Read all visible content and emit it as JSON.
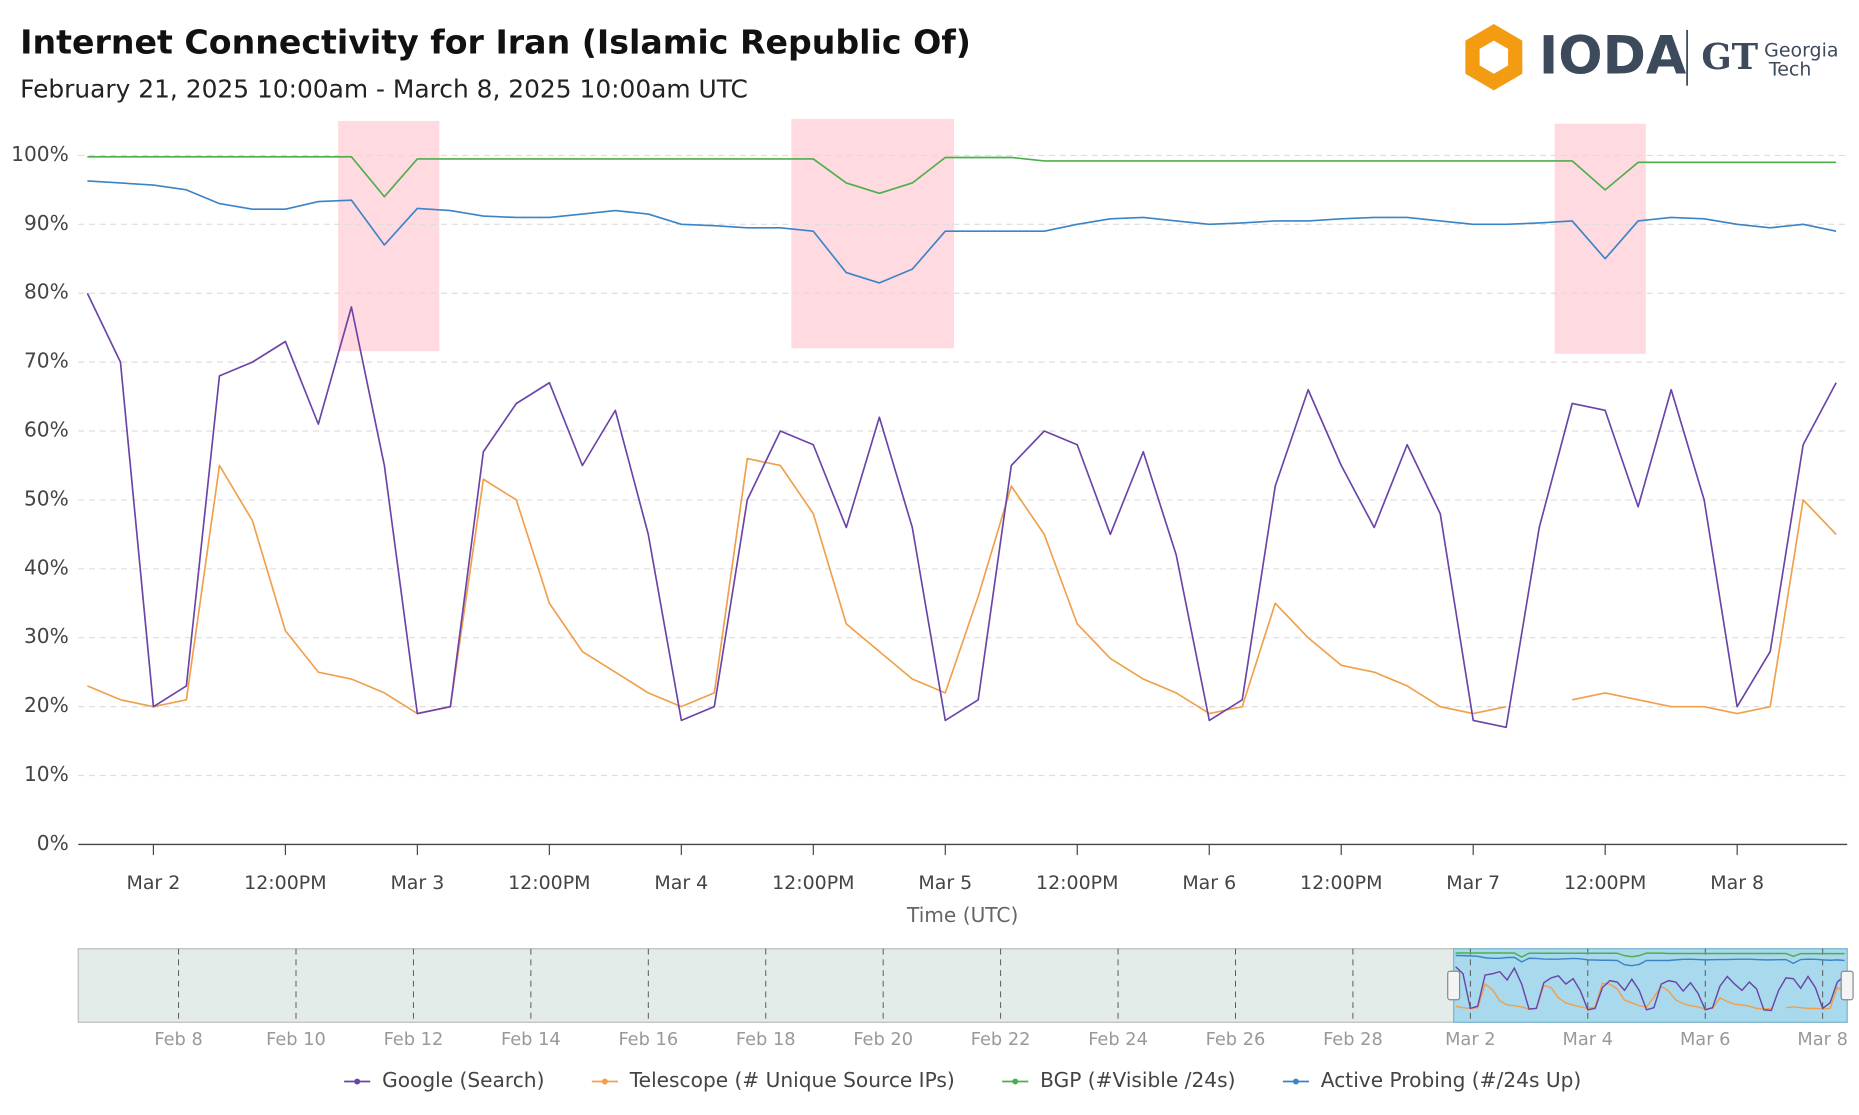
{
  "chart_data": {
    "type": "line",
    "title": "Internet Connectivity for  Iran (Islamic Republic Of)",
    "subtitle": "February 21, 2025 10:00am - March 8, 2025 10:00am UTC",
    "xlabel": "Time (UTC)",
    "x": [
      "2025-03-01T18:00",
      "2025-03-01T21:00",
      "2025-03-02T00:00",
      "2025-03-02T03:00",
      "2025-03-02T06:00",
      "2025-03-02T09:00",
      "2025-03-02T12:00",
      "2025-03-02T15:00",
      "2025-03-02T18:00",
      "2025-03-02T21:00",
      "2025-03-03T00:00",
      "2025-03-03T03:00",
      "2025-03-03T06:00",
      "2025-03-03T09:00",
      "2025-03-03T12:00",
      "2025-03-03T15:00",
      "2025-03-03T18:00",
      "2025-03-03T21:00",
      "2025-03-04T00:00",
      "2025-03-04T03:00",
      "2025-03-04T06:00",
      "2025-03-04T09:00",
      "2025-03-04T12:00",
      "2025-03-04T15:00",
      "2025-03-04T18:00",
      "2025-03-04T21:00",
      "2025-03-05T00:00",
      "2025-03-05T03:00",
      "2025-03-05T06:00",
      "2025-03-05T09:00",
      "2025-03-05T12:00",
      "2025-03-05T15:00",
      "2025-03-05T18:00",
      "2025-03-05T21:00",
      "2025-03-06T00:00",
      "2025-03-06T03:00",
      "2025-03-06T06:00",
      "2025-03-06T09:00",
      "2025-03-06T12:00",
      "2025-03-06T15:00",
      "2025-03-06T18:00",
      "2025-03-06T21:00",
      "2025-03-07T00:00",
      "2025-03-07T03:00",
      "2025-03-07T06:00",
      "2025-03-07T09:00",
      "2025-03-07T12:00",
      "2025-03-07T15:00",
      "2025-03-07T18:00",
      "2025-03-07T21:00",
      "2025-03-08T00:00",
      "2025-03-08T03:00",
      "2025-03-08T06:00",
      "2025-03-08T09:00"
    ],
    "series": [
      {
        "name": "Google (Search)",
        "color": "#6a44a8",
        "values": [
          80,
          70,
          20,
          23,
          68,
          70,
          73,
          61,
          78,
          55,
          19,
          20,
          57,
          64,
          67,
          55,
          63,
          45,
          18,
          20,
          50,
          60,
          58,
          46,
          62,
          46,
          18,
          21,
          55,
          60,
          58,
          45,
          57,
          42,
          18,
          21,
          52,
          66,
          55,
          46,
          58,
          48,
          18,
          17,
          46,
          64,
          63,
          49,
          66,
          50,
          20,
          28,
          58,
          67
        ]
      },
      {
        "name": "Telescope (# Unique Source IPs)",
        "color": "#f0a04b",
        "values": [
          23,
          21,
          20,
          21,
          55,
          47,
          31,
          25,
          24,
          22,
          19,
          20,
          53,
          50,
          35,
          28,
          25,
          22,
          20,
          22,
          56,
          55,
          48,
          32,
          28,
          24,
          22,
          36,
          52,
          45,
          32,
          27,
          24,
          22,
          19,
          20,
          35,
          30,
          26,
          25,
          23,
          20,
          19,
          20,
          null,
          21,
          22,
          21,
          20,
          20,
          19,
          20,
          50,
          45
        ]
      },
      {
        "name": "BGP (#Visible /24s)",
        "color": "#4daf4a",
        "values": [
          99.8,
          99.8,
          99.8,
          99.8,
          99.8,
          99.8,
          99.8,
          99.8,
          99.8,
          94,
          99.5,
          99.5,
          99.5,
          99.5,
          99.5,
          99.5,
          99.5,
          99.5,
          99.5,
          99.5,
          99.5,
          99.5,
          99.5,
          96,
          94.5,
          96,
          99.7,
          99.7,
          99.7,
          99.2,
          99.2,
          99.2,
          99.2,
          99.2,
          99.2,
          99.2,
          99.2,
          99.2,
          99.2,
          99.2,
          99.2,
          99.2,
          99.2,
          99.2,
          99.2,
          99.2,
          95,
          99,
          99,
          99,
          99,
          99,
          99,
          99
        ]
      },
      {
        "name": "Active Probing (#/24s Up)",
        "color": "#3a85c6",
        "values": [
          96.3,
          96,
          95.7,
          95,
          93,
          92.2,
          92.2,
          93.3,
          93.5,
          87,
          92.3,
          92,
          91.2,
          91,
          91,
          91.5,
          92,
          91.5,
          90,
          89.8,
          89.5,
          89.5,
          89,
          83,
          81.5,
          83.5,
          89,
          89,
          89,
          89,
          90,
          90.8,
          91,
          90.5,
          90,
          90.2,
          90.5,
          90.5,
          90.8,
          91,
          91,
          90.5,
          90,
          90,
          90.2,
          90.5,
          85,
          90.5,
          91,
          90.8,
          90,
          89.5,
          90,
          89
        ]
      }
    ],
    "xlim": [
      "2025-03-01T17:10",
      "2025-03-08T10:00"
    ],
    "xticks": [
      {
        "value": "2025-03-02T00:00",
        "label": "Mar 2"
      },
      {
        "value": "2025-03-02T12:00",
        "label": "12:00PM"
      },
      {
        "value": "2025-03-03T00:00",
        "label": "Mar 3"
      },
      {
        "value": "2025-03-03T12:00",
        "label": "12:00PM"
      },
      {
        "value": "2025-03-04T00:00",
        "label": "Mar 4"
      },
      {
        "value": "2025-03-04T12:00",
        "label": "12:00PM"
      },
      {
        "value": "2025-03-05T00:00",
        "label": "Mar 5"
      },
      {
        "value": "2025-03-05T12:00",
        "label": "12:00PM"
      },
      {
        "value": "2025-03-06T00:00",
        "label": "Mar 6"
      },
      {
        "value": "2025-03-06T12:00",
        "label": "12:00PM"
      },
      {
        "value": "2025-03-07T00:00",
        "label": "Mar 7"
      },
      {
        "value": "2025-03-07T12:00",
        "label": "12:00PM"
      },
      {
        "value": "2025-03-08T00:00",
        "label": "Mar 8"
      }
    ],
    "ylim": [
      0,
      106
    ],
    "yticks": [
      {
        "value": 0,
        "label": "0%"
      },
      {
        "value": 10,
        "label": "10%"
      },
      {
        "value": 20,
        "label": "20%"
      },
      {
        "value": 30,
        "label": "30%"
      },
      {
        "value": 40,
        "label": "40%"
      },
      {
        "value": 50,
        "label": "50%"
      },
      {
        "value": 60,
        "label": "60%"
      },
      {
        "value": 70,
        "label": "70%"
      },
      {
        "value": 80,
        "label": "80%"
      },
      {
        "value": 90,
        "label": "90%"
      },
      {
        "value": 100,
        "label": "100%"
      }
    ],
    "grid": true,
    "alerts": [
      {
        "start": "2025-03-02T16:48",
        "end": "2025-03-03T02:00",
        "ymin": 71.6,
        "ymax": 105,
        "color": "#ffd3dc"
      },
      {
        "start": "2025-03-04T10:00",
        "end": "2025-03-05T00:48",
        "ymin": 72,
        "ymax": 105.3,
        "color": "#ffd3dc"
      },
      {
        "start": "2025-03-07T07:24",
        "end": "2025-03-07T15:42",
        "ymin": 71.2,
        "ymax": 104.6,
        "color": "#ffd3dc"
      }
    ],
    "legend": "bottom",
    "overview": {
      "xlim": [
        "2025-02-06T07:00",
        "2025-03-08T10:00"
      ],
      "xticks": [
        {
          "value": "2025-02-08T00:00",
          "label": "Feb 8"
        },
        {
          "value": "2025-02-10T00:00",
          "label": "Feb 10"
        },
        {
          "value": "2025-02-12T00:00",
          "label": "Feb 12"
        },
        {
          "value": "2025-02-14T00:00",
          "label": "Feb 14"
        },
        {
          "value": "2025-02-16T00:00",
          "label": "Feb 16"
        },
        {
          "value": "2025-02-18T00:00",
          "label": "Feb 18"
        },
        {
          "value": "2025-02-20T00:00",
          "label": "Feb 20"
        },
        {
          "value": "2025-02-22T00:00",
          "label": "Feb 22"
        },
        {
          "value": "2025-02-24T00:00",
          "label": "Feb 24"
        },
        {
          "value": "2025-02-26T00:00",
          "label": "Feb 26"
        },
        {
          "value": "2025-02-28T00:00",
          "label": "Feb 28"
        },
        {
          "value": "2025-03-02T00:00",
          "label": "Mar 2"
        },
        {
          "value": "2025-03-04T00:00",
          "label": "Mar 4"
        },
        {
          "value": "2025-03-06T00:00",
          "label": "Mar 6"
        },
        {
          "value": "2025-03-08T00:00",
          "label": "Mar 8"
        }
      ]
    }
  },
  "logo": {
    "name": "IODA",
    "partner_mark": "GT",
    "partner_line1": "Georgia",
    "partner_line2": "Tech"
  }
}
